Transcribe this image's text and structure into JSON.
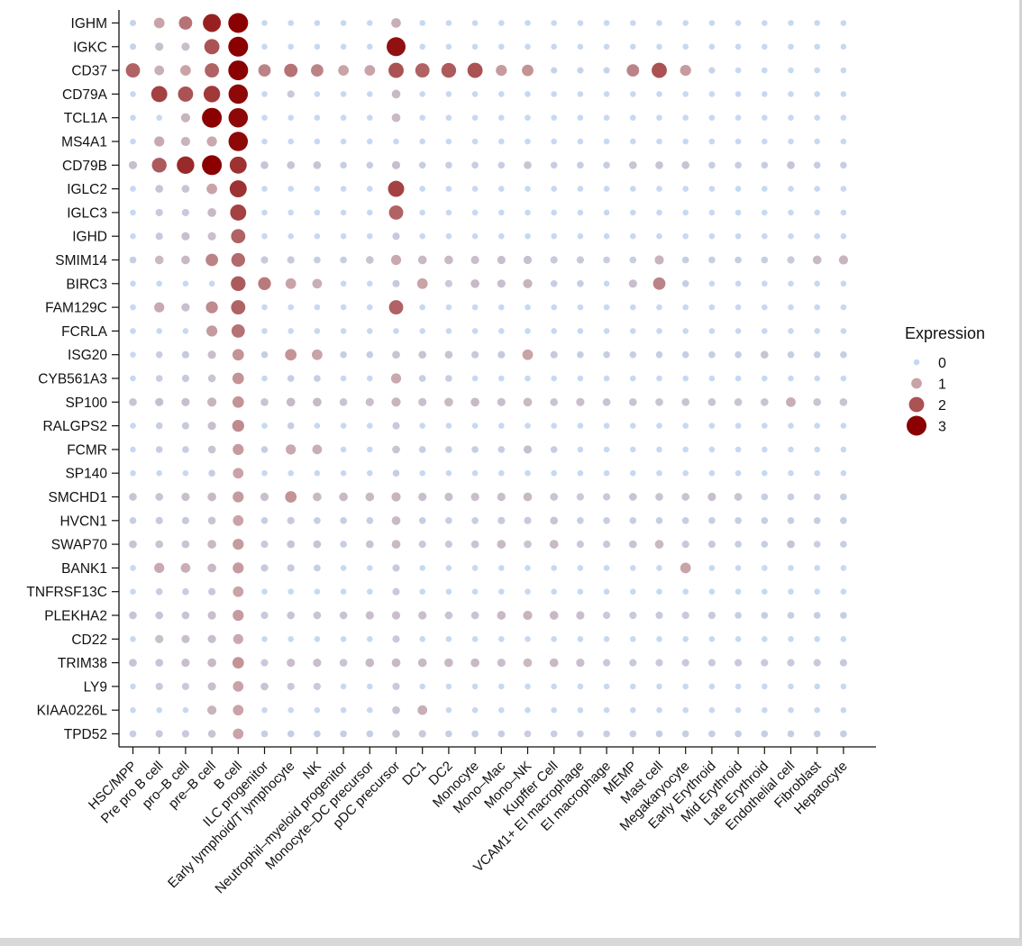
{
  "chart_data": {
    "type": "dotplot",
    "title": "",
    "xlabel": "",
    "ylabel": "",
    "genes": [
      "IGHM",
      "IGKC",
      "CD37",
      "CD79A",
      "TCL1A",
      "MS4A1",
      "CD79B",
      "IGLC2",
      "IGLC3",
      "IGHD",
      "SMIM14",
      "BIRC3",
      "FAM129C",
      "FCRLA",
      "ISG20",
      "CYB561A3",
      "SP100",
      "RALGPS2",
      "FCMR",
      "SP140",
      "SMCHD1",
      "HVCN1",
      "SWAP70",
      "BANK1",
      "TNFRSF13C",
      "PLEKHA2",
      "CD22",
      "TRIM38",
      "LY9",
      "KIAA0226L",
      "TPD52"
    ],
    "cell_types": [
      "HSC/MPP",
      "Pre pro B cell",
      "pro–B cell",
      "pre–B cell",
      "B cell",
      "ILC progenitor",
      "Early lymphoid/T lymphocyte",
      "NK",
      "Neutrophil–myeloid progenitor",
      "Monocyte–DC precursor",
      "pDC precursor",
      "DC1",
      "DC2",
      "Monocyte",
      "Mono–Mac",
      "Mono–NK",
      "Kupffer Cell",
      "VCAM1+ EI macrophage",
      "EI macrophage",
      "MEMP",
      "Mast cell",
      "Megakaryocyte",
      "Early Erythroid",
      "Mid  Erythroid",
      "Late Erythroid",
      "Endothelial cell",
      "Fibroblast",
      "Hepatocyte"
    ],
    "expression": [
      [
        0.1,
        1.0,
        1.6,
        2.6,
        3.1,
        0,
        0,
        0,
        0,
        0,
        0.8,
        0,
        0,
        0,
        0,
        0,
        0,
        0,
        0,
        0,
        0,
        0,
        0,
        0,
        0,
        0,
        0,
        0
      ],
      [
        0.1,
        0.5,
        0.5,
        2.0,
        3.1,
        0,
        0,
        0,
        0,
        0,
        2.8,
        0,
        0,
        0,
        0,
        0,
        0,
        0,
        0,
        0,
        0,
        0,
        0,
        0,
        0,
        0,
        0,
        0
      ],
      [
        1.8,
        0.8,
        1.0,
        1.8,
        3.1,
        1.4,
        1.6,
        1.4,
        1.0,
        1.0,
        2.0,
        1.8,
        1.9,
        2.0,
        1.1,
        1.2,
        0.1,
        0.1,
        0.1,
        1.4,
        2.0,
        1.1,
        0.1,
        0,
        0,
        0,
        0,
        0
      ],
      [
        0,
        2.2,
        2.0,
        2.3,
        2.9,
        0,
        0.3,
        0,
        0,
        0,
        0.6,
        0,
        0,
        0,
        0,
        0,
        0,
        0,
        0,
        0,
        0,
        0,
        0,
        0,
        0,
        0,
        0,
        0
      ],
      [
        0,
        0,
        0.7,
        3.1,
        2.9,
        0,
        0,
        0,
        0,
        0,
        0.6,
        0,
        0,
        0,
        0,
        0,
        0,
        0,
        0,
        0,
        0,
        0,
        0,
        0,
        0,
        0,
        0,
        0
      ],
      [
        0,
        0.9,
        0.7,
        0.9,
        2.9,
        0,
        0,
        0,
        0,
        0,
        0,
        0,
        0,
        0,
        0,
        0,
        0,
        0,
        0,
        0,
        0,
        0,
        0,
        0,
        0,
        0,
        0,
        0
      ],
      [
        0.5,
        1.9,
        2.5,
        3.1,
        2.4,
        0.4,
        0.4,
        0.4,
        0.2,
        0.2,
        0.5,
        0.2,
        0.2,
        0.2,
        0.2,
        0.4,
        0.2,
        0.2,
        0.2,
        0.4,
        0.4,
        0.4,
        0.2,
        0.2,
        0.2,
        0.4,
        0.2,
        0.2
      ],
      [
        0,
        0.4,
        0.4,
        1.0,
        2.4,
        0,
        0,
        0,
        0,
        0,
        2.2,
        0,
        0,
        0,
        0,
        0,
        0,
        0,
        0,
        0,
        0,
        0,
        0,
        0,
        0,
        0,
        0,
        0
      ],
      [
        0,
        0.3,
        0.3,
        0.6,
        2.2,
        0,
        0,
        0,
        0,
        0,
        1.8,
        0,
        0,
        0,
        0,
        0,
        0,
        0,
        0,
        0,
        0,
        0,
        0,
        0,
        0,
        0,
        0,
        0
      ],
      [
        0,
        0.3,
        0.5,
        0.5,
        1.8,
        0,
        0,
        0,
        0,
        0,
        0.3,
        0,
        0,
        0,
        0,
        0,
        0,
        0,
        0,
        0,
        0,
        0,
        0,
        0,
        0,
        0,
        0,
        0
      ],
      [
        0.2,
        0.6,
        0.6,
        1.4,
        1.7,
        0.3,
        0.3,
        0.2,
        0.2,
        0.4,
        0.9,
        0.6,
        0.6,
        0.5,
        0.5,
        0.5,
        0.3,
        0.3,
        0.2,
        0.2,
        0.7,
        0.2,
        0.2,
        0.2,
        0.2,
        0.3,
        0.6,
        0.7
      ],
      [
        0,
        0,
        0,
        0,
        1.9,
        1.5,
        1.0,
        0.8,
        0,
        0,
        0.3,
        1.0,
        0.3,
        0.6,
        0.5,
        0.7,
        0.2,
        0.2,
        0,
        0.5,
        1.4,
        0.2,
        0,
        0,
        0,
        0,
        0,
        0
      ],
      [
        0,
        0.9,
        0.5,
        1.3,
        1.8,
        0,
        0,
        0,
        0,
        0,
        1.8,
        0,
        0,
        0,
        0,
        0,
        0,
        0,
        0,
        0,
        0,
        0,
        0,
        0,
        0,
        0,
        0,
        0
      ],
      [
        0,
        0,
        0,
        1.1,
        1.6,
        0,
        0,
        0,
        0,
        0,
        0,
        0,
        0,
        0,
        0,
        0,
        0,
        0,
        0,
        0,
        0,
        0,
        0,
        0,
        0,
        0,
        0,
        0
      ],
      [
        0,
        0.2,
        0.3,
        0.5,
        1.2,
        0.2,
        1.2,
        1.0,
        0.2,
        0.2,
        0.4,
        0.4,
        0.4,
        0.3,
        0.3,
        1.0,
        0.3,
        0.2,
        0.2,
        0.2,
        0.2,
        0.2,
        0.2,
        0.2,
        0.4,
        0.2,
        0.2,
        0.2
      ],
      [
        0,
        0.2,
        0.3,
        0.4,
        1.2,
        0,
        0.2,
        0.2,
        0,
        0,
        0.9,
        0.2,
        0.2,
        0,
        0,
        0,
        0,
        0,
        0,
        0,
        0,
        0,
        0,
        0,
        0,
        0,
        0,
        0
      ],
      [
        0.4,
        0.5,
        0.5,
        0.7,
        1.2,
        0.4,
        0.6,
        0.6,
        0.4,
        0.5,
        0.7,
        0.5,
        0.6,
        0.6,
        0.5,
        0.6,
        0.4,
        0.5,
        0.4,
        0.4,
        0.4,
        0.4,
        0.4,
        0.4,
        0.4,
        0.8,
        0.4,
        0.4
      ],
      [
        0,
        0.2,
        0.3,
        0.5,
        1.3,
        0,
        0.2,
        0,
        0,
        0,
        0.3,
        0,
        0,
        0,
        0,
        0,
        0,
        0,
        0,
        0,
        0,
        0,
        0,
        0,
        0,
        0,
        0,
        0
      ],
      [
        0,
        0.2,
        0.2,
        0.4,
        1.1,
        0.2,
        0.9,
        0.8,
        0,
        0,
        0.4,
        0.2,
        0.2,
        0.2,
        0.2,
        0.5,
        0.2,
        0,
        0,
        0,
        0,
        0,
        0,
        0,
        0,
        0,
        0,
        0
      ],
      [
        0,
        0,
        0,
        0.2,
        1.0,
        0,
        0,
        0,
        0,
        0,
        0.2,
        0,
        0,
        0,
        0,
        0,
        0,
        0,
        0,
        0,
        0,
        0,
        0,
        0,
        0,
        0,
        0,
        0
      ],
      [
        0.4,
        0.4,
        0.5,
        0.6,
        1.1,
        0.5,
        1.2,
        0.6,
        0.6,
        0.6,
        0.7,
        0.5,
        0.5,
        0.5,
        0.5,
        0.6,
        0.4,
        0.3,
        0.3,
        0.4,
        0.4,
        0.4,
        0.5,
        0.4,
        0.2,
        0.2,
        0.2,
        0.2
      ],
      [
        0.2,
        0.3,
        0.3,
        0.4,
        1.0,
        0.2,
        0.3,
        0.2,
        0.2,
        0.2,
        0.6,
        0.2,
        0.2,
        0.2,
        0.3,
        0.3,
        0.4,
        0.2,
        0.2,
        0.2,
        0.2,
        0.2,
        0.2,
        0.2,
        0.2,
        0.2,
        0.2,
        0.2
      ],
      [
        0.4,
        0.4,
        0.4,
        0.6,
        1.1,
        0.3,
        0.4,
        0.4,
        0.2,
        0.4,
        0.6,
        0.3,
        0.3,
        0.4,
        0.6,
        0.4,
        0.6,
        0.3,
        0.3,
        0.4,
        0.6,
        0.3,
        0.3,
        0.2,
        0.2,
        0.4,
        0.2,
        0.2
      ],
      [
        0,
        0.9,
        0.8,
        0.6,
        1.1,
        0.3,
        0.3,
        0.2,
        0,
        0,
        0.3,
        0,
        0,
        0,
        0,
        0,
        0,
        0,
        0,
        0,
        0,
        1.0,
        0,
        0,
        0,
        0,
        0,
        0
      ],
      [
        0,
        0.2,
        0.2,
        0.3,
        1.0,
        0,
        0,
        0,
        0,
        0,
        0.3,
        0,
        0,
        0,
        0,
        0,
        0,
        0,
        0,
        0,
        0,
        0,
        0,
        0,
        0,
        0,
        0,
        0
      ],
      [
        0.4,
        0.4,
        0.4,
        0.5,
        1.1,
        0.3,
        0.4,
        0.4,
        0.4,
        0.5,
        0.5,
        0.5,
        0.4,
        0.4,
        0.6,
        0.7,
        0.6,
        0.5,
        0.3,
        0.3,
        0.3,
        0.3,
        0.3,
        0.2,
        0.2,
        0.2,
        0.2,
        0.2
      ],
      [
        0,
        0.5,
        0.5,
        0.5,
        0.9,
        0,
        0,
        0,
        0,
        0,
        0.3,
        0,
        0,
        0,
        0,
        0,
        0,
        0,
        0,
        0,
        0,
        0,
        0,
        0,
        0,
        0,
        0,
        0
      ],
      [
        0.4,
        0.4,
        0.5,
        0.6,
        1.2,
        0.3,
        0.5,
        0.5,
        0.4,
        0.6,
        0.6,
        0.6,
        0.6,
        0.6,
        0.5,
        0.6,
        0.6,
        0.5,
        0.3,
        0.3,
        0.3,
        0.3,
        0.3,
        0.3,
        0.3,
        0.3,
        0.3,
        0.3
      ],
      [
        0,
        0.3,
        0.3,
        0.5,
        1.0,
        0.4,
        0.3,
        0.3,
        0,
        0,
        0.3,
        0,
        0,
        0,
        0,
        0,
        0,
        0,
        0,
        0,
        0,
        0,
        0,
        0,
        0,
        0,
        0,
        0
      ],
      [
        0,
        0,
        0,
        0.7,
        1.0,
        0,
        0,
        0,
        0,
        0,
        0.4,
        0.8,
        0,
        0,
        0,
        0,
        0,
        0,
        0,
        0,
        0,
        0,
        0,
        0,
        0,
        0,
        0,
        0
      ],
      [
        0.2,
        0.3,
        0.3,
        0.4,
        1.0,
        0.2,
        0.2,
        0.2,
        0.2,
        0.2,
        0.4,
        0.3,
        0.2,
        0.2,
        0.2,
        0.2,
        0.2,
        0.2,
        0.2,
        0.2,
        0.2,
        0.2,
        0.2,
        0.2,
        0.2,
        0.2,
        0.2,
        0.2
      ]
    ],
    "legend": {
      "title": "Expression",
      "values": [
        0,
        1,
        2,
        3
      ],
      "labels": [
        "0",
        "1",
        "2",
        "3"
      ],
      "position": "right"
    },
    "range": [
      0,
      3
    ],
    "colors": {
      "low": "#c6d9f2",
      "mid": "#c9a4a8",
      "high": "#8b0000",
      "axis": "#111111"
    }
  }
}
